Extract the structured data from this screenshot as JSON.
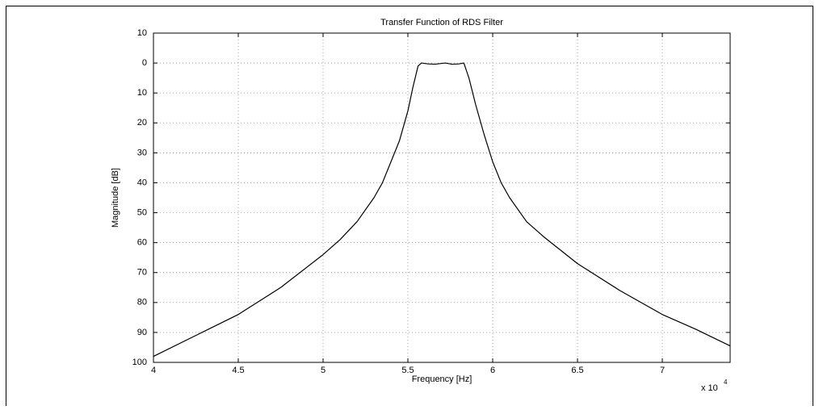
{
  "chart_data": {
    "type": "line",
    "title": "Transfer Function of RDS Filter",
    "x_label": "Frequency [Hz]",
    "y_label": "Magnitude [dB]",
    "x_multiplier": "x 10",
    "x_exponent": "4",
    "x": [
      4,
      4.25,
      4.5,
      4.75,
      5,
      5.1,
      5.2,
      5.3,
      5.35,
      5.4,
      5.45,
      5.5,
      5.53,
      5.56,
      5.58,
      5.62,
      5.66,
      5.72,
      5.76,
      5.8,
      5.83,
      5.86,
      5.9,
      5.95,
      6,
      6.05,
      6.1,
      6.2,
      6.3,
      6.5,
      6.75,
      7,
      7.2,
      7.4
    ],
    "values": [
      -98,
      -91,
      -84,
      -75,
      -64,
      -59,
      -53,
      -45,
      -40,
      -33,
      -26,
      -16,
      -8,
      -1,
      0,
      -0.3,
      -0.4,
      0,
      -0.4,
      -0.3,
      0,
      -5,
      -14,
      -24,
      -33,
      -40,
      -45,
      -53,
      -58,
      -67,
      -76,
      -84,
      -89,
      -94.5
    ],
    "color": "#000000",
    "xlim": [
      4,
      7.4
    ],
    "ylim": [
      -100,
      10
    ],
    "xticks": [
      4,
      4.5,
      5,
      5.5,
      6,
      6.5,
      7
    ],
    "yticks": [
      10,
      0,
      {
        "value": -10,
        "label": "10"
      },
      {
        "value": -20,
        "label": "20"
      },
      {
        "value": -30,
        "label": "30"
      },
      {
        "value": -40,
        "label": "40"
      },
      {
        "value": -50,
        "label": "50"
      },
      {
        "value": -60,
        "label": "60"
      },
      {
        "value": -70,
        "label": "70"
      },
      {
        "value": -80,
        "label": "80"
      },
      {
        "value": -90,
        "label": "90"
      },
      {
        "value": -100,
        "label": "100"
      }
    ],
    "grid": true
  }
}
